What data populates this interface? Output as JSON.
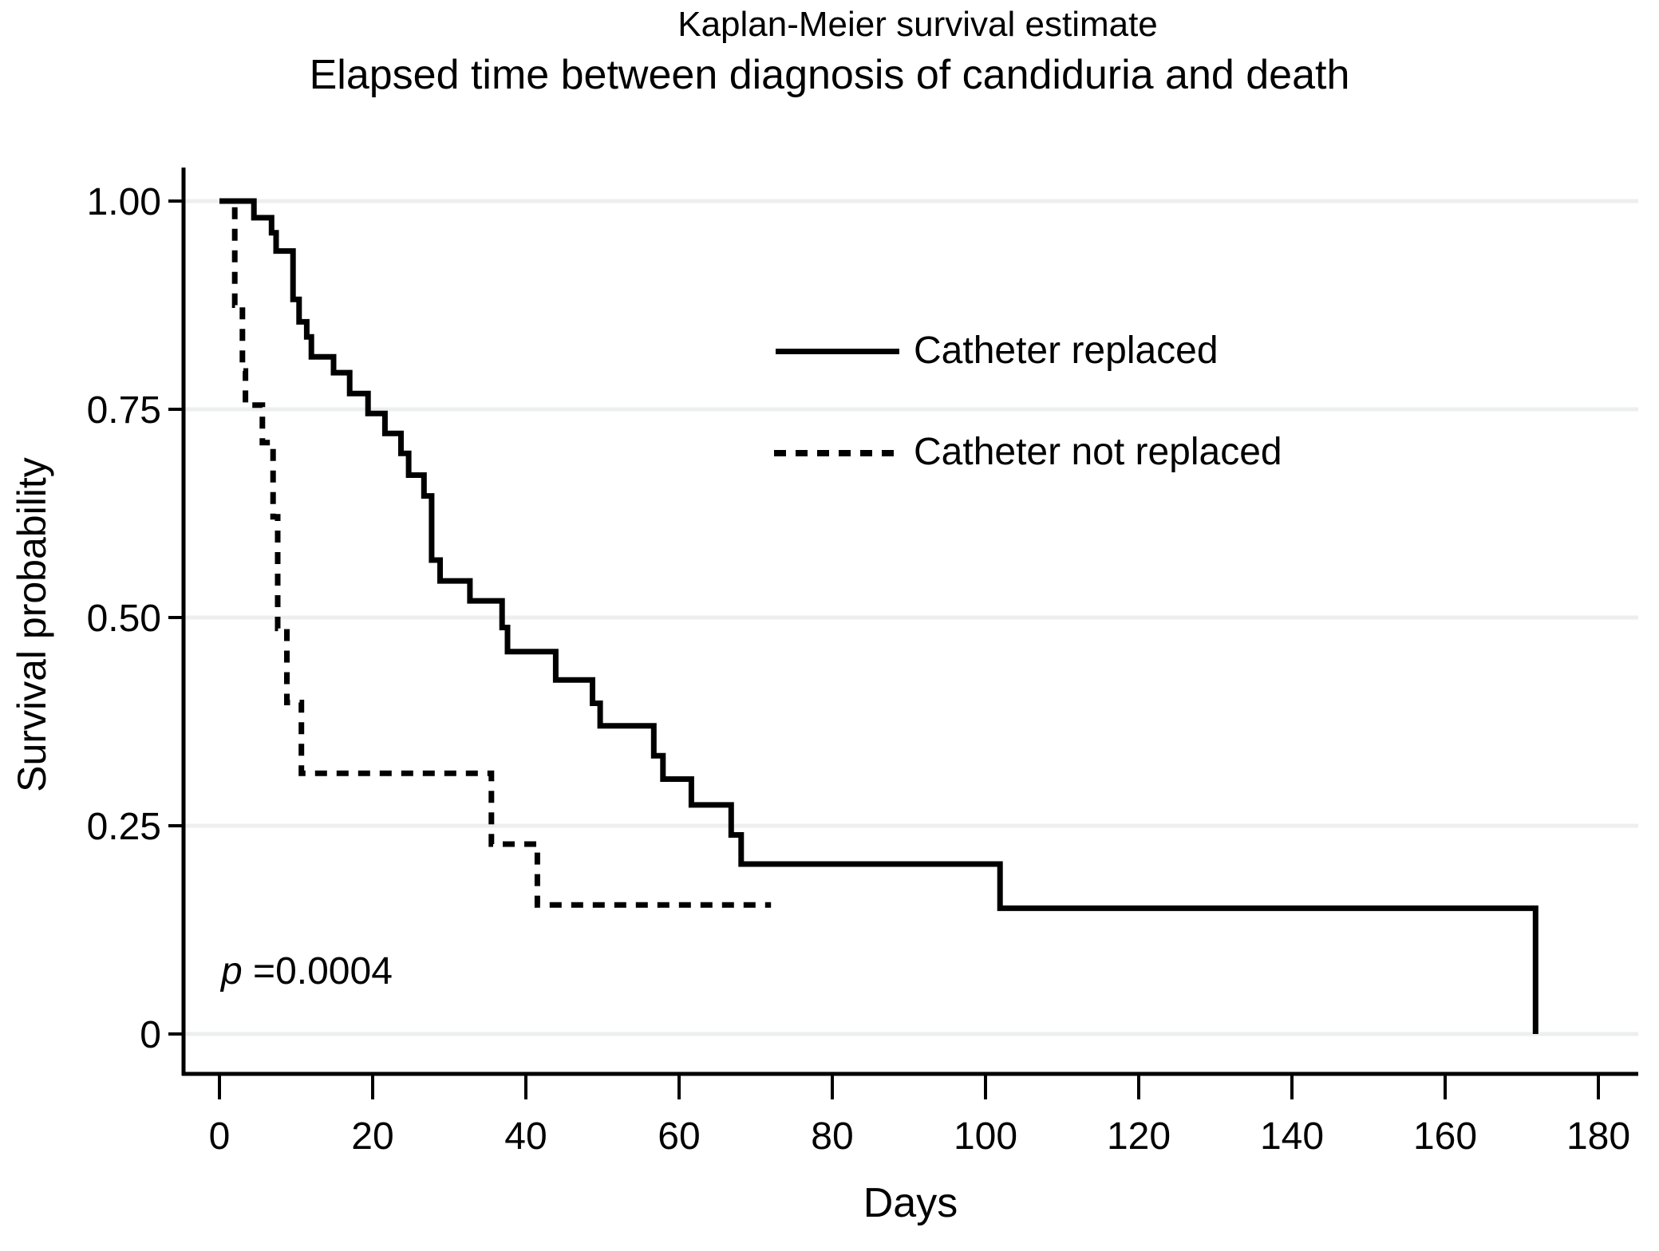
{
  "figure": {
    "title": "Kaplan-Meier survival estimate",
    "subtitle": "Elapsed time between diagnosis of candiduria and death",
    "p_value_italic": "p",
    "p_value_rest": " =0.0004"
  },
  "chart_data": {
    "type": "line",
    "subtype": "kaplan-meier-step",
    "title": "Kaplan-Meier survival estimate",
    "subtitle": "Elapsed time between diagnosis of candiduria and death",
    "xlabel": "Days",
    "ylabel": "Survival probability",
    "xlim": [
      0,
      180
    ],
    "ylim": [
      0,
      1
    ],
    "x_ticks": [
      0,
      20,
      40,
      60,
      80,
      100,
      120,
      140,
      160,
      180
    ],
    "y_ticks": [
      {
        "value": 0,
        "label": "0"
      },
      {
        "value": 0.25,
        "label": "0.25"
      },
      {
        "value": 0.5,
        "label": "0.50"
      },
      {
        "value": 0.75,
        "label": "0.75"
      },
      {
        "value": 1.0,
        "label": "1.00"
      }
    ],
    "grid": "horizontal gridlines at each y tick",
    "gridline_color": "#edefef",
    "curve_color": "#000000",
    "legend_position": "inside upper right",
    "annotation": "p =0.0004",
    "series": [
      {
        "name": "Catheter replaced",
        "line_style": "solid",
        "color": "#000000",
        "end_day": 171.8,
        "points": [
          [
            0,
            1.0
          ],
          [
            4.5,
            0.98
          ],
          [
            6.8,
            0.962
          ],
          [
            7.4,
            0.94
          ],
          [
            9.6,
            0.882
          ],
          [
            10.4,
            0.855
          ],
          [
            11.4,
            0.837
          ],
          [
            12,
            0.813
          ],
          [
            14.9,
            0.794
          ],
          [
            17,
            0.769
          ],
          [
            19.4,
            0.745
          ],
          [
            21.6,
            0.721
          ],
          [
            23.7,
            0.697
          ],
          [
            24.7,
            0.671
          ],
          [
            26.7,
            0.646
          ],
          [
            27.7,
            0.569
          ],
          [
            28.8,
            0.544
          ],
          [
            32.7,
            0.52
          ],
          [
            36.9,
            0.488
          ],
          [
            37.6,
            0.459
          ],
          [
            43.9,
            0.425
          ],
          [
            48.7,
            0.397
          ],
          [
            49.7,
            0.37
          ],
          [
            56.7,
            0.334
          ],
          [
            57.9,
            0.306
          ],
          [
            61.6,
            0.275
          ],
          [
            66.8,
            0.239
          ],
          [
            68.1,
            0.204
          ],
          [
            101.9,
            0.151
          ],
          [
            171.8,
            0
          ]
        ]
      },
      {
        "name": "Catheter not replaced",
        "line_style": "dashed",
        "color": "#000000",
        "end_day": 72,
        "points": [
          [
            0,
            1.0
          ],
          [
            2,
            0.875
          ],
          [
            3,
            0.796
          ],
          [
            3.4,
            0.755
          ],
          [
            5.6,
            0.71
          ],
          [
            7,
            0.621
          ],
          [
            7.6,
            0.487
          ],
          [
            8.8,
            0.398
          ],
          [
            10.7,
            0.313
          ],
          [
            35.5,
            0.228
          ],
          [
            41.5,
            0.155
          ]
        ]
      }
    ]
  }
}
